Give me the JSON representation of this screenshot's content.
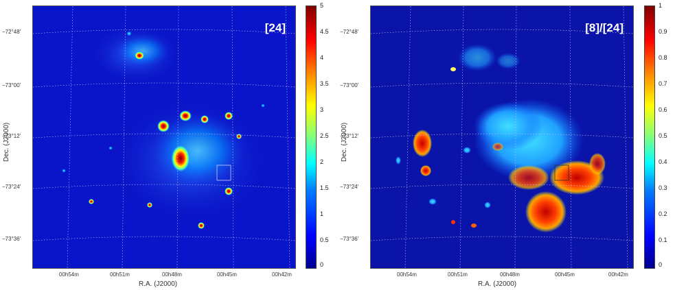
{
  "left_panel": {
    "label": "[24]",
    "ra_ticks": [
      "00h54m",
      "00h51m",
      "00h48m",
      "00h45m",
      "00h42m"
    ],
    "dec_ticks": [
      "−72°48'",
      "−73°00'",
      "−73°12'",
      "−73°24'",
      "−73°36'"
    ],
    "xlabel": "R.A. (J2000)",
    "ylabel": "Dec. (J2000)",
    "colorbar_ticks": [
      "5",
      "4.5",
      "4",
      "3.5",
      "3",
      "2.5",
      "2",
      "1.5",
      "1",
      "0.5",
      "0"
    ]
  },
  "right_panel": {
    "label": "[8]/[24]",
    "ra_ticks": [
      "00h54m",
      "00h51m",
      "00h48m",
      "00h45m",
      "00h42m"
    ],
    "dec_ticks": [
      "−72°48'",
      "−73°00'",
      "−73°12'",
      "−73°24'",
      "−73°36'"
    ],
    "xlabel": "R.A. (J2000)",
    "ylabel": "Dec. (J2000)",
    "colorbar_ticks": [
      "1",
      "0.9",
      "0.8",
      "0.7",
      "0.6",
      "0.5",
      "0.4",
      "0.3",
      "0.2",
      "0.1",
      "0"
    ]
  },
  "colors": {
    "background": "#0a14c8",
    "grid": "#c8c8ff"
  }
}
